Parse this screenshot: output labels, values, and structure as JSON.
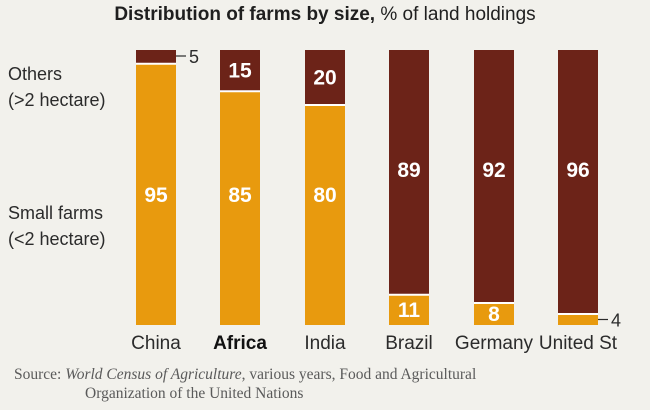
{
  "title": {
    "bold": "Distribution of farms by size,",
    "rest": " % of land holdings"
  },
  "legend": {
    "others": [
      "Others",
      "(>2 hectare)"
    ],
    "small": [
      "Small farms",
      "(<2 hectare)"
    ]
  },
  "colors": {
    "small": "#e89a0e",
    "others": "#6c2318",
    "background": "#f2f1ec"
  },
  "chart_data": {
    "type": "bar",
    "stacked": true,
    "categories": [
      "China",
      "Africa",
      "India",
      "Brazil",
      "Germany",
      "United States"
    ],
    "emphasized_category": "Africa",
    "category_labels_visible": [
      "China",
      "Africa",
      "India",
      "Brazil",
      "Germany",
      "United St"
    ],
    "series": [
      {
        "name": "Small farms (<2 hectare)",
        "values": [
          95,
          85,
          80,
          11,
          8,
          4
        ]
      },
      {
        "name": "Others (>2 hectare)",
        "values": [
          5,
          15,
          20,
          89,
          92,
          96
        ]
      }
    ],
    "data_labels": {
      "small": [
        "95",
        "85",
        "80",
        "11",
        "8",
        "4"
      ],
      "others": [
        "5",
        "15",
        "20",
        "89",
        "92",
        "96"
      ]
    },
    "external_labels": {
      "others_index": 0,
      "small_index": 5
    },
    "ylim": [
      0,
      100
    ],
    "title": "Distribution of farms by size, % of land holdings",
    "xlabel": "",
    "ylabel": ""
  },
  "source": {
    "prefix": "Source: ",
    "work": "World Census of Agriculture",
    "rest1": ", various years, Food and Agricultural",
    "line2": "Organization of the United Nations"
  }
}
